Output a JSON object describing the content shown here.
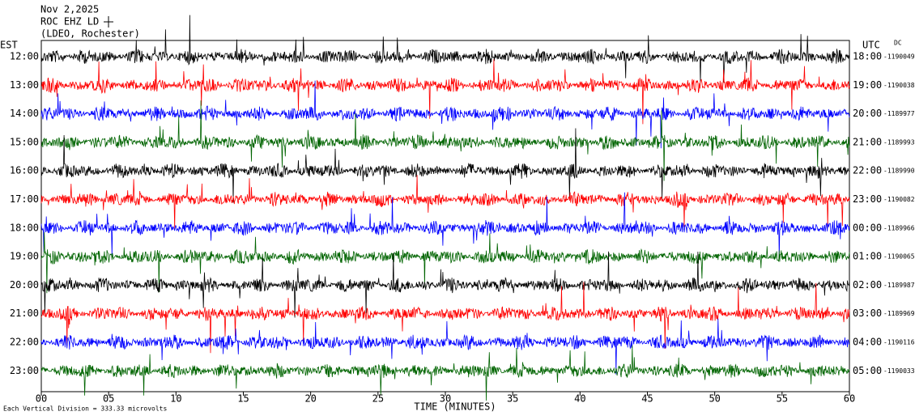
{
  "header": {
    "date": "Nov 2,2025",
    "station": "ROC EHZ LD",
    "network": "(LDEO, Rochester)"
  },
  "left_zone": "EST",
  "right_zone": "UTC",
  "dc": "DC",
  "rows": [
    {
      "left": "12:00",
      "right": "18:00",
      "offset": "-1190049"
    },
    {
      "left": "13:00",
      "right": "19:00",
      "offset": "-1190038"
    },
    {
      "left": "14:00",
      "right": "20:00",
      "offset": "-1189977"
    },
    {
      "left": "15:00",
      "right": "21:00",
      "offset": "-1189993"
    },
    {
      "left": "16:00",
      "right": "22:00",
      "offset": "-1189990"
    },
    {
      "left": "17:00",
      "right": "23:00",
      "offset": "-1190082"
    },
    {
      "left": "18:00",
      "right": "00:00",
      "offset": "-1189966"
    },
    {
      "left": "19:00",
      "right": "01:00",
      "offset": "-1190065"
    },
    {
      "left": "20:00",
      "right": "02:00",
      "offset": "-1189987"
    },
    {
      "left": "21:00",
      "right": "03:00",
      "offset": "-1189969"
    },
    {
      "left": "22:00",
      "right": "04:00",
      "offset": "-1190116"
    },
    {
      "left": "23:00",
      "right": "05:00",
      "offset": "-1190033"
    }
  ],
  "x_ticks": [
    "00",
    "05",
    "10",
    "15",
    "20",
    "25",
    "30",
    "35",
    "40",
    "45",
    "50",
    "55",
    "60"
  ],
  "x_label": "TIME (MINUTES)",
  "footer": "Each Vertical Division =  333.33 microvolts"
}
